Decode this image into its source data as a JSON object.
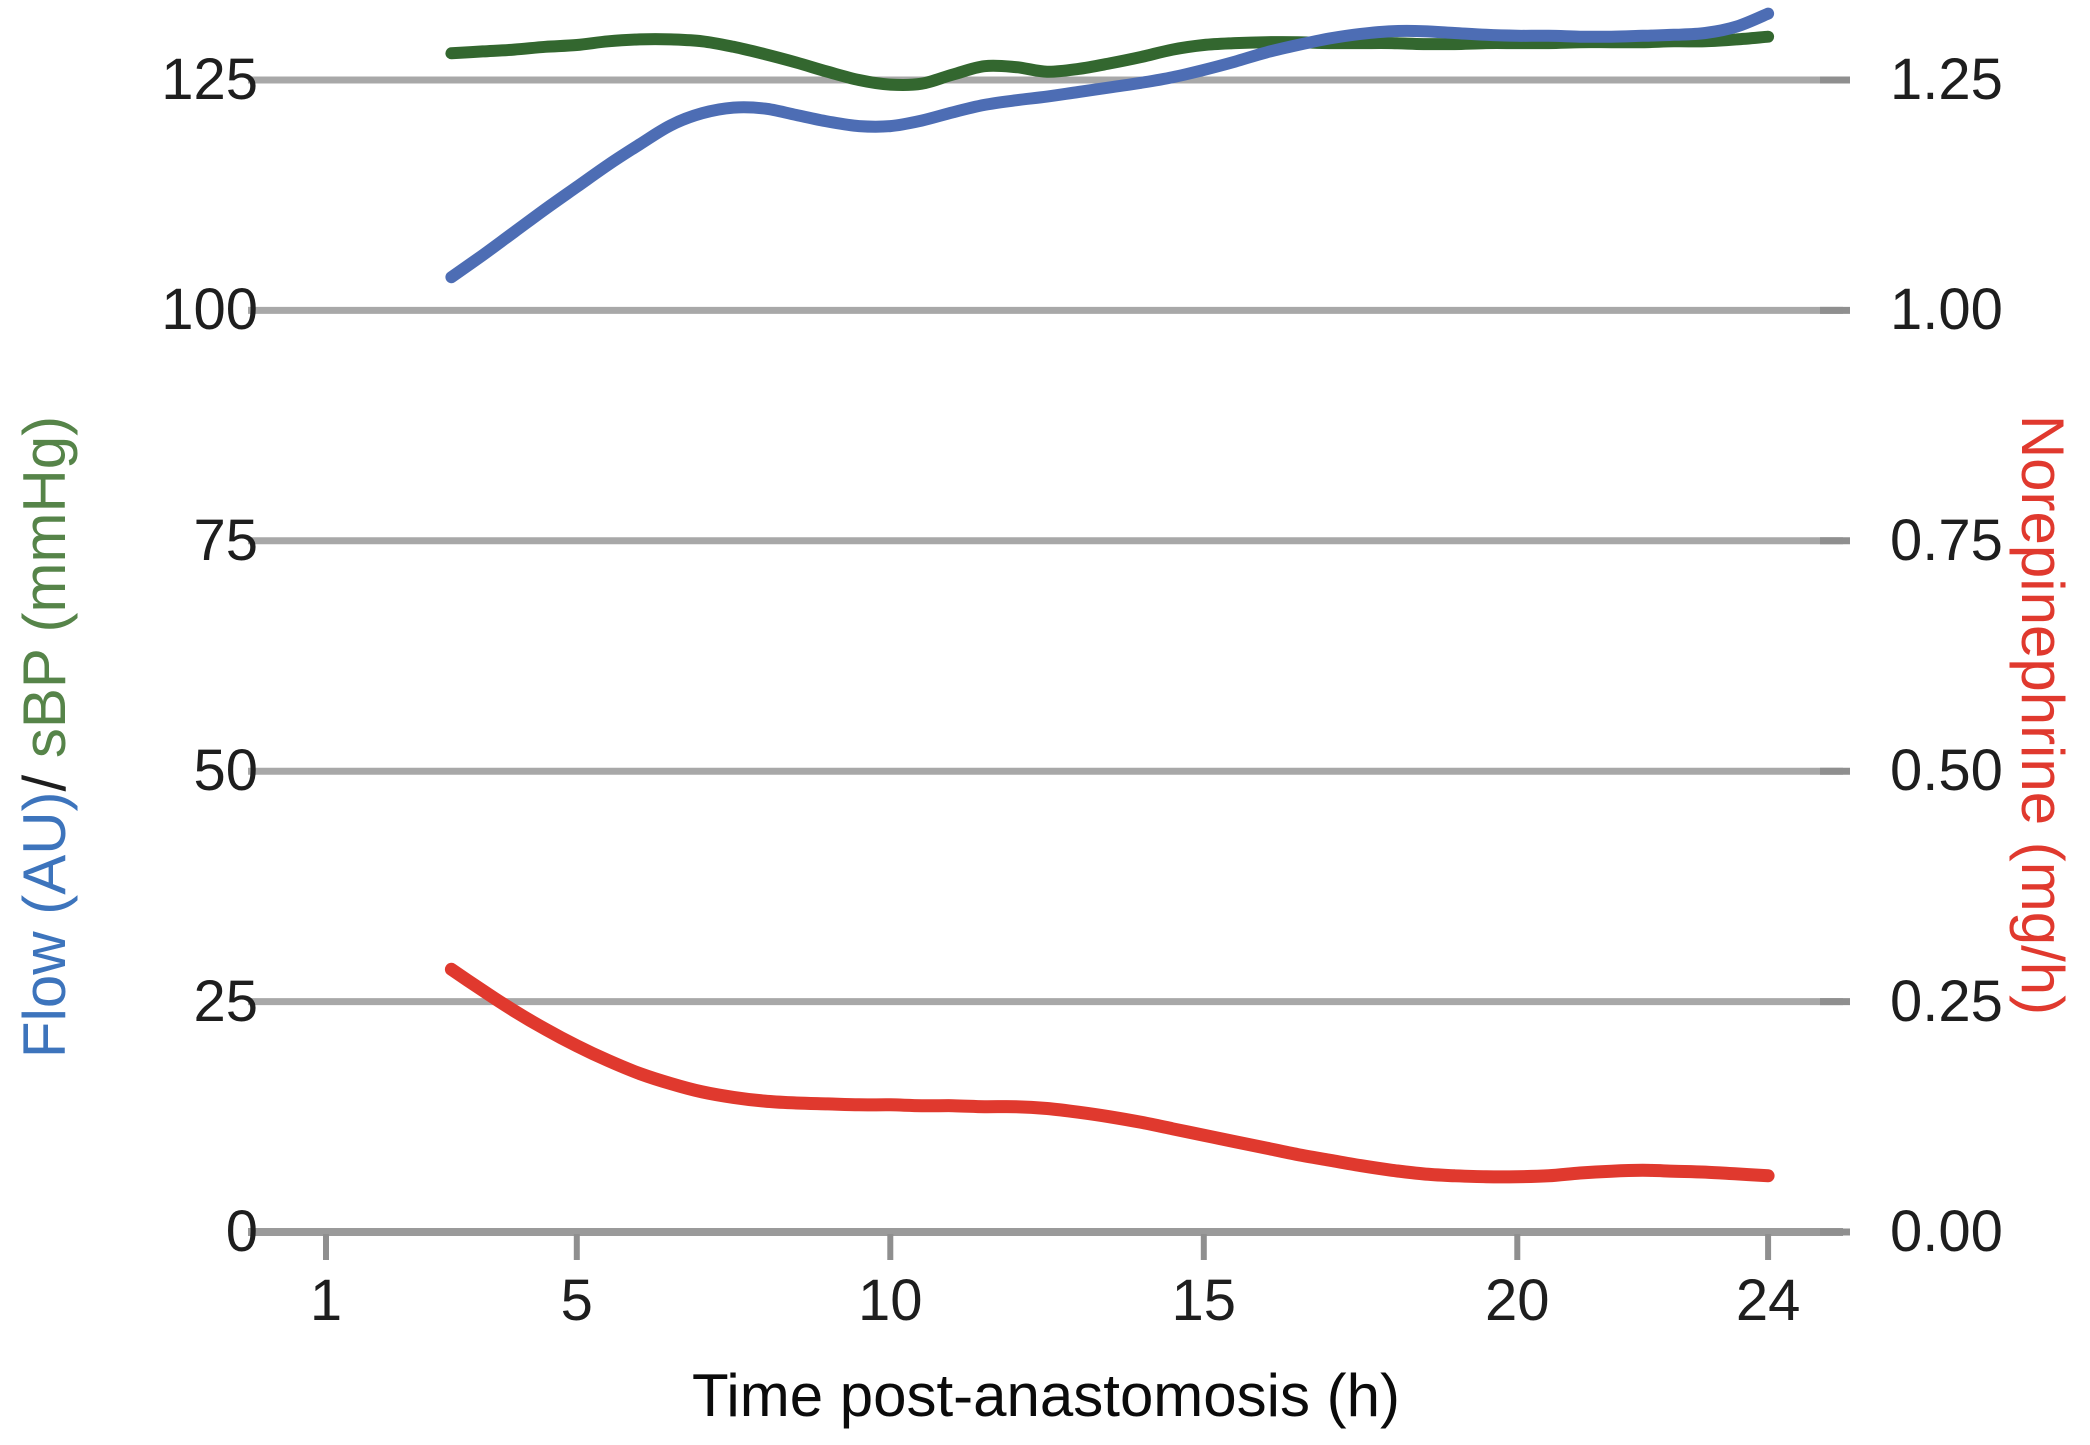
{
  "figure": {
    "background": "#ffffff",
    "colors": {
      "flow_line": "#4d6db4",
      "sbp_line": "#33672f",
      "norepinephrine_line": "#e0392e",
      "gridline": "#a8a8a8",
      "axis_line": "#9a9a9a",
      "tick_mark": "#8f8f8f",
      "tick_text": "#1e1e1e",
      "title_text": "#0b0b0b",
      "label_flow_text": "#3d74bc",
      "label_slash_text": "#1e1e1e",
      "label_sbp_text": "#568449",
      "label_norepi_text": "#e0392e"
    },
    "y_left_label": {
      "flow_part": "Flow (AU)",
      "slash_part": "/",
      "sbp_part": " sBP (mmHg)"
    },
    "y_right_label": "Norepinephrine (mg/h)"
  },
  "chart_data": {
    "type": "line",
    "title": "",
    "xlabel": "Time post-anastomosis (h)",
    "ylabel_left": "Flow (AU)/ sBP (mmHg)",
    "ylabel_right": "Norepinephrine (mg/h)",
    "x_ticks": [
      1,
      5,
      10,
      15,
      20,
      24
    ],
    "x_tick_labels": [
      "1",
      "5",
      "10",
      "15",
      "20",
      "24"
    ],
    "xlim": [
      -0.25,
      25.2
    ],
    "y_left_ticks": [
      125,
      100,
      75,
      50,
      25,
      0
    ],
    "y_left_tick_labels": [
      "125",
      "100",
      "75",
      "50",
      "25",
      "0"
    ],
    "ylim_left": [
      0,
      135
    ],
    "y_right_ticks": [
      1.25,
      1.0,
      0.75,
      0.5,
      0.25,
      0.0
    ],
    "y_right_tick_labels": [
      "1.25",
      "1.00",
      "0.75",
      "0.50",
      "0.25",
      "0.00"
    ],
    "ylim_right": [
      0,
      1.35
    ],
    "grid": "horizontal",
    "legend": "none",
    "x": [
      3,
      3.5,
      4,
      4.5,
      5,
      5.5,
      6,
      6.5,
      7,
      7.5,
      8,
      8.5,
      9,
      9.5,
      10,
      10.5,
      11,
      11.5,
      12,
      12.5,
      13,
      13.5,
      14,
      14.5,
      15,
      15.5,
      16,
      16.5,
      17,
      17.5,
      18,
      18.5,
      19,
      19.5,
      20,
      20.5,
      21,
      21.5,
      22,
      22.5,
      23,
      23.5,
      24
    ],
    "series": [
      {
        "name": "sBP (mmHg)",
        "axis": "left",
        "color": "#33672f",
        "stroke_width": 12,
        "values": [
          127.9,
          128.1,
          128.3,
          128.6,
          128.8,
          129.2,
          129.4,
          129.4,
          129.2,
          128.6,
          127.8,
          126.9,
          125.9,
          125.0,
          124.5,
          124.6,
          125.6,
          126.5,
          126.4,
          125.9,
          126.2,
          126.8,
          127.5,
          128.3,
          128.8,
          129.0,
          129.1,
          129.1,
          129.0,
          129.0,
          129.0,
          128.9,
          128.9,
          129.0,
          129.0,
          129.0,
          129.1,
          129.1,
          129.1,
          129.2,
          129.2,
          129.4,
          129.7
        ]
      },
      {
        "name": "Flow (AU)",
        "axis": "left",
        "color": "#4d6db4",
        "stroke_width": 12,
        "values": [
          103.6,
          106.0,
          108.5,
          111.0,
          113.4,
          115.8,
          118.0,
          120.1,
          121.4,
          122.0,
          121.9,
          121.2,
          120.5,
          120.0,
          120.0,
          120.6,
          121.5,
          122.3,
          122.8,
          123.2,
          123.7,
          124.2,
          124.7,
          125.3,
          126.1,
          127.0,
          128.0,
          128.8,
          129.5,
          130.0,
          130.3,
          130.3,
          130.1,
          129.9,
          129.8,
          129.8,
          129.7,
          129.7,
          129.8,
          129.9,
          130.1,
          130.8,
          132.2
        ]
      },
      {
        "name": "Norepinephrine (mg/h)",
        "axis": "right",
        "color": "#e0392e",
        "stroke_width": 13,
        "values": [
          0.285,
          0.262,
          0.24,
          0.22,
          0.202,
          0.186,
          0.172,
          0.161,
          0.152,
          0.146,
          0.142,
          0.14,
          0.139,
          0.138,
          0.138,
          0.137,
          0.137,
          0.136,
          0.136,
          0.134,
          0.13,
          0.125,
          0.119,
          0.112,
          0.105,
          0.098,
          0.091,
          0.084,
          0.078,
          0.072,
          0.067,
          0.063,
          0.061,
          0.06,
          0.06,
          0.061,
          0.064,
          0.066,
          0.067,
          0.066,
          0.065,
          0.063,
          0.061
        ]
      }
    ]
  }
}
